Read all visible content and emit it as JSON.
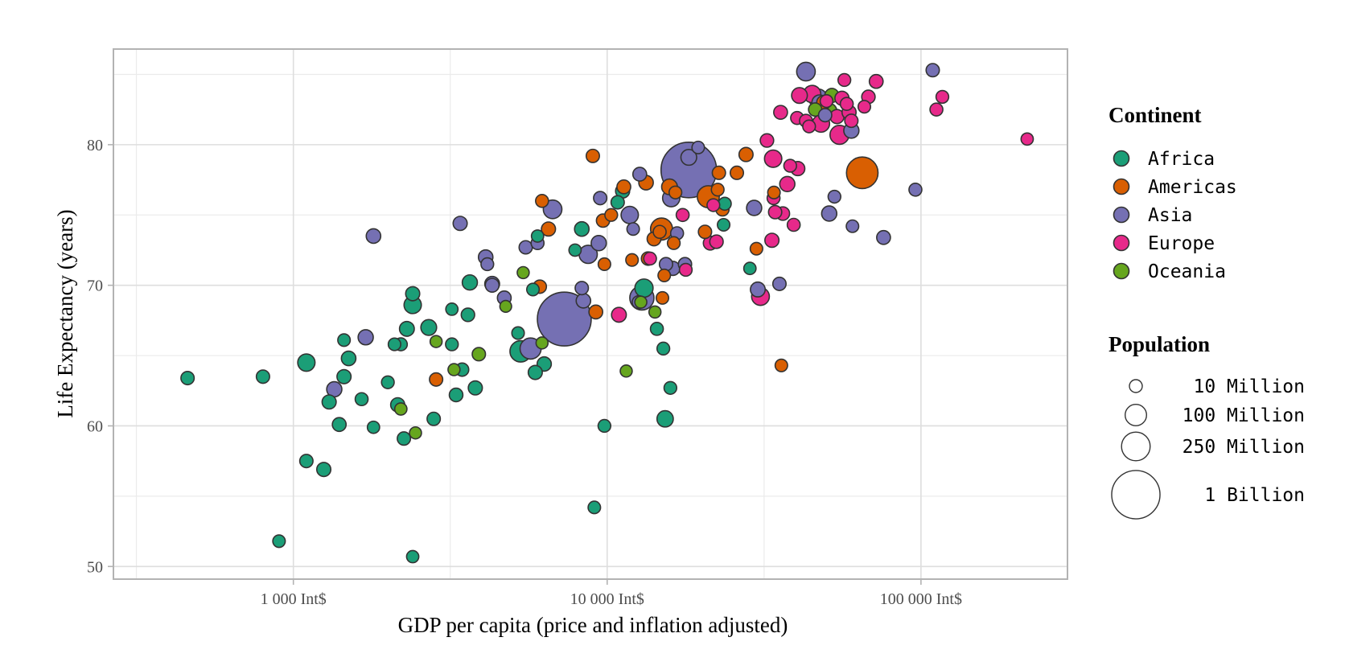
{
  "chart_data": {
    "type": "scatter",
    "title": "",
    "xlabel": "GDP per capita (price and inflation adjusted)",
    "ylabel": "Life Expectancy (years)",
    "x_scale": "log",
    "xlim": [
      267,
      293000
    ],
    "ylim": [
      49.1,
      86.8
    ],
    "x_ticks": [
      {
        "value": 1000,
        "label": "1 000 Int$"
      },
      {
        "value": 10000,
        "label": "10 000 Int$"
      },
      {
        "value": 100000,
        "label": "100 000 Int$"
      }
    ],
    "x_minor_ticks": [
      316,
      3162,
      31623
    ],
    "y_ticks": [
      {
        "value": 50,
        "label": "50"
      },
      {
        "value": 60,
        "label": "60"
      },
      {
        "value": 70,
        "label": "70"
      },
      {
        "value": 80,
        "label": "80"
      }
    ],
    "y_minor_ticks": [
      55,
      65,
      75,
      85
    ],
    "grid": true,
    "legend": {
      "position": "right",
      "color_title": "Continent",
      "size_title": "Population",
      "continents": [
        {
          "name": "Africa",
          "color": "#1b9e77"
        },
        {
          "name": "Americas",
          "color": "#d95f02"
        },
        {
          "name": "Asia",
          "color": "#7570b3"
        },
        {
          "name": "Europe",
          "color": "#e7298a"
        },
        {
          "name": "Oceania",
          "color": "#66a61e"
        }
      ],
      "sizes": [
        {
          "value_millions": 10,
          "label": "10 Million"
        },
        {
          "value_millions": 100,
          "label": "100 Million"
        },
        {
          "value_millions": 250,
          "label": "250 Million"
        },
        {
          "value_millions": 1000,
          "label": "1 Billion"
        }
      ]
    },
    "series_fields": [
      "gdp_per_capita",
      "life_expectancy",
      "population_millions",
      "continent"
    ],
    "points": [
      [
        460,
        63.4,
        12,
        "Africa"
      ],
      [
        800,
        63.5,
        12,
        "Africa"
      ],
      [
        900,
        51.8,
        8,
        "Africa"
      ],
      [
        1100,
        64.5,
        45,
        "Africa"
      ],
      [
        1100,
        57.5,
        12,
        "Africa"
      ],
      [
        1250,
        56.9,
        17,
        "Africa"
      ],
      [
        1300,
        61.7,
        17,
        "Africa"
      ],
      [
        1400,
        60.1,
        15,
        "Africa"
      ],
      [
        1450,
        66.1,
        8,
        "Africa"
      ],
      [
        1450,
        63.5,
        17,
        "Africa"
      ],
      [
        1500,
        64.8,
        20,
        "Africa"
      ],
      [
        1350,
        62.6,
        25,
        "Asia"
      ],
      [
        1700,
        66.3,
        25,
        "Asia"
      ],
      [
        1650,
        61.9,
        10,
        "Africa"
      ],
      [
        1800,
        59.9,
        7,
        "Africa"
      ],
      [
        1800,
        73.5,
        20,
        "Asia"
      ],
      [
        2000,
        63.1,
        9,
        "Africa"
      ],
      [
        2100,
        65.8,
        8,
        "Africa"
      ],
      [
        2150,
        61.5,
        17,
        "Africa"
      ],
      [
        2200,
        61.2,
        7,
        "Oceania"
      ],
      [
        2200,
        65.8,
        10,
        "Africa"
      ],
      [
        2250,
        59.1,
        12,
        "Africa"
      ],
      [
        2300,
        66.9,
        22,
        "Africa"
      ],
      [
        2400,
        68.6,
        45,
        "Africa"
      ],
      [
        2400,
        69.4,
        17,
        "Africa"
      ],
      [
        2400,
        50.7,
        7,
        "Africa"
      ],
      [
        2450,
        59.5,
        6,
        "Oceania"
      ],
      [
        2700,
        67.0,
        30,
        "Africa"
      ],
      [
        2800,
        60.5,
        12,
        "Africa"
      ],
      [
        2850,
        66.0,
        6,
        "Oceania"
      ],
      [
        2850,
        63.3,
        12,
        "Americas"
      ],
      [
        3200,
        65.8,
        9,
        "Africa"
      ],
      [
        3200,
        68.3,
        7,
        "Africa"
      ],
      [
        3250,
        64.0,
        6,
        "Oceania"
      ],
      [
        3300,
        62.2,
        14,
        "Africa"
      ],
      [
        3400,
        74.4,
        17,
        "Asia"
      ],
      [
        3450,
        64.0,
        12,
        "Africa"
      ],
      [
        3600,
        67.9,
        13,
        "Africa"
      ],
      [
        3650,
        70.2,
        25,
        "Africa"
      ],
      [
        3800,
        62.7,
        17,
        "Africa"
      ],
      [
        3900,
        65.1,
        12,
        "Oceania"
      ],
      [
        4100,
        72.0,
        20,
        "Asia"
      ],
      [
        4150,
        71.5,
        9,
        "Asia"
      ],
      [
        4300,
        70.1,
        22,
        "Asia"
      ],
      [
        4300,
        70.0,
        15,
        "Asia"
      ],
      [
        4700,
        69.1,
        15,
        "Asia"
      ],
      [
        4750,
        68.5,
        5,
        "Oceania"
      ],
      [
        5200,
        66.6,
        8,
        "Africa"
      ],
      [
        5300,
        65.3,
        100,
        "Africa"
      ],
      [
        5400,
        70.9,
        6,
        "Oceania"
      ],
      [
        5500,
        72.7,
        12,
        "Asia"
      ],
      [
        5700,
        65.5,
        95,
        "Asia"
      ],
      [
        5800,
        69.7,
        8,
        "Africa"
      ],
      [
        5900,
        63.8,
        17,
        "Africa"
      ],
      [
        6000,
        73.0,
        10,
        "Asia"
      ],
      [
        6000,
        73.5,
        7,
        "Africa"
      ],
      [
        6100,
        69.9,
        12,
        "Americas"
      ],
      [
        6200,
        76.0,
        10,
        "Americas"
      ],
      [
        6200,
        65.9,
        6,
        "Oceania"
      ],
      [
        6300,
        64.4,
        18,
        "Africa"
      ],
      [
        6500,
        74.0,
        17,
        "Americas"
      ],
      [
        6700,
        75.4,
        60,
        "Asia"
      ],
      [
        7300,
        67.6,
        1300,
        "Asia"
      ],
      [
        7900,
        72.5,
        7,
        "Africa"
      ],
      [
        8300,
        74.0,
        20,
        "Africa"
      ],
      [
        8300,
        69.8,
        12,
        "Asia"
      ],
      [
        8400,
        68.9,
        20,
        "Asia"
      ],
      [
        8700,
        72.2,
        55,
        "Asia"
      ],
      [
        9000,
        79.2,
        12,
        "Americas"
      ],
      [
        9100,
        54.2,
        8,
        "Africa"
      ],
      [
        9200,
        68.1,
        15,
        "Americas"
      ],
      [
        9400,
        73.0,
        25,
        "Asia"
      ],
      [
        9500,
        76.2,
        12,
        "Asia"
      ],
      [
        9700,
        74.6,
        12,
        "Americas"
      ],
      [
        9800,
        71.5,
        8,
        "Americas"
      ],
      [
        9800,
        60.0,
        9,
        "Africa"
      ],
      [
        10300,
        75.0,
        9,
        "Americas"
      ],
      [
        10800,
        75.9,
        12,
        "Africa"
      ],
      [
        10900,
        67.9,
        22,
        "Europe"
      ],
      [
        11200,
        76.7,
        17,
        "Africa"
      ],
      [
        11300,
        77.0,
        15,
        "Americas"
      ],
      [
        11500,
        63.9,
        6,
        "Oceania"
      ],
      [
        11800,
        75.0,
        45,
        "Asia"
      ],
      [
        12000,
        71.8,
        8,
        "Americas"
      ],
      [
        12100,
        74.0,
        8,
        "Asia"
      ],
      [
        12600,
        68.8,
        10,
        "Asia"
      ],
      [
        12700,
        77.9,
        15,
        "Asia"
      ],
      [
        12800,
        68.8,
        6,
        "Oceania"
      ],
      [
        12900,
        69.1,
        150,
        "Asia"
      ],
      [
        13100,
        69.8,
        55,
        "Africa"
      ],
      [
        13300,
        77.3,
        20,
        "Americas"
      ],
      [
        13500,
        71.9,
        13,
        "Americas"
      ],
      [
        13700,
        71.9,
        9,
        "Europe"
      ],
      [
        14100,
        73.3,
        15,
        "Americas"
      ],
      [
        14200,
        68.1,
        6,
        "Oceania"
      ],
      [
        14400,
        66.9,
        10,
        "Africa"
      ],
      [
        14700,
        73.8,
        10,
        "Americas"
      ],
      [
        14900,
        74.0,
        110,
        "Americas"
      ],
      [
        15000,
        69.1,
        8,
        "Americas"
      ],
      [
        15100,
        65.5,
        9,
        "Africa"
      ],
      [
        15200,
        70.7,
        8,
        "Americas"
      ],
      [
        15300,
        60.5,
        35,
        "Africa"
      ],
      [
        15400,
        71.5,
        12,
        "Asia"
      ],
      [
        15800,
        77.0,
        30,
        "Americas"
      ],
      [
        15900,
        62.7,
        9,
        "Africa"
      ],
      [
        16000,
        76.2,
        45,
        "Asia"
      ],
      [
        16200,
        71.2,
        17,
        "Asia"
      ],
      [
        16300,
        73.0,
        9,
        "Americas"
      ],
      [
        16500,
        76.6,
        9,
        "Americas"
      ],
      [
        16700,
        73.7,
        10,
        "Asia"
      ],
      [
        17400,
        75.0,
        10,
        "Europe"
      ],
      [
        17700,
        71.5,
        12,
        "Asia"
      ],
      [
        17800,
        71.1,
        9,
        "Europe"
      ],
      [
        18200,
        78.2,
        1400,
        "Asia"
      ],
      [
        18200,
        79.1,
        30,
        "Asia"
      ],
      [
        19500,
        79.8,
        8,
        "Asia"
      ],
      [
        20500,
        73.8,
        12,
        "Americas"
      ],
      [
        21000,
        76.3,
        110,
        "Americas"
      ],
      [
        21300,
        73.0,
        15,
        "Europe"
      ],
      [
        21800,
        75.7,
        9,
        "Europe"
      ],
      [
        22300,
        73.1,
        13,
        "Europe"
      ],
      [
        22500,
        76.8,
        9,
        "Americas"
      ],
      [
        22700,
        78.0,
        12,
        "Americas"
      ],
      [
        23300,
        75.4,
        12,
        "Americas"
      ],
      [
        23500,
        74.3,
        8,
        "Africa"
      ],
      [
        23700,
        75.8,
        10,
        "Africa"
      ],
      [
        25900,
        78.0,
        12,
        "Americas"
      ],
      [
        27700,
        79.3,
        17,
        "Americas"
      ],
      [
        28500,
        71.2,
        7,
        "Africa"
      ],
      [
        29400,
        75.5,
        25,
        "Asia"
      ],
      [
        29900,
        72.6,
        8,
        "Americas"
      ],
      [
        30200,
        69.7,
        22,
        "Asia"
      ],
      [
        30800,
        69.2,
        50,
        "Europe"
      ],
      [
        32300,
        80.3,
        13,
        "Europe"
      ],
      [
        33500,
        73.2,
        17,
        "Europe"
      ],
      [
        33800,
        79.0,
        45,
        "Europe"
      ],
      [
        33900,
        76.2,
        10,
        "Europe"
      ],
      [
        34000,
        76.6,
        8,
        "Americas"
      ],
      [
        34300,
        75.2,
        12,
        "Europe"
      ],
      [
        35400,
        70.1,
        12,
        "Asia"
      ],
      [
        35700,
        82.3,
        15,
        "Europe"
      ],
      [
        35900,
        64.3,
        8,
        "Americas"
      ],
      [
        36300,
        75.1,
        13,
        "Europe"
      ],
      [
        37500,
        77.2,
        25,
        "Europe"
      ],
      [
        38300,
        78.5,
        9,
        "Europe"
      ],
      [
        39300,
        74.3,
        10,
        "Europe"
      ],
      [
        40300,
        81.9,
        10,
        "Europe"
      ],
      [
        40500,
        78.3,
        17,
        "Europe"
      ],
      [
        41000,
        83.5,
        30,
        "Europe"
      ],
      [
        43000,
        81.7,
        10,
        "Europe"
      ],
      [
        43000,
        85.2,
        60,
        "Asia"
      ],
      [
        44000,
        81.3,
        9,
        "Europe"
      ],
      [
        45000,
        83.6,
        45,
        "Europe"
      ],
      [
        46000,
        82.5,
        12,
        "Oceania"
      ],
      [
        47000,
        83.3,
        60,
        "Asia"
      ],
      [
        47500,
        83.0,
        25,
        "Asia"
      ],
      [
        48000,
        81.5,
        45,
        "Europe"
      ],
      [
        48500,
        82.8,
        30,
        "Europe"
      ],
      [
        49000,
        83.0,
        17,
        "Americas"
      ],
      [
        49500,
        82.1,
        12,
        "Asia"
      ],
      [
        50000,
        83.1,
        9,
        "Europe"
      ],
      [
        51000,
        75.1,
        25,
        "Asia"
      ],
      [
        51000,
        82.4,
        25,
        "Oceania"
      ],
      [
        52000,
        83.5,
        17,
        "Oceania"
      ],
      [
        53000,
        76.3,
        9,
        "Asia"
      ],
      [
        54000,
        82.0,
        17,
        "Europe"
      ],
      [
        55000,
        80.7,
        65,
        "Europe"
      ],
      [
        56000,
        83.3,
        17,
        "Europe"
      ],
      [
        57000,
        84.6,
        9,
        "Europe"
      ],
      [
        58000,
        82.9,
        10,
        "Europe"
      ],
      [
        59000,
        82.3,
        17,
        "Europe"
      ],
      [
        60000,
        81.7,
        12,
        "Europe"
      ],
      [
        60000,
        81.0,
        25,
        "Asia"
      ],
      [
        60500,
        74.2,
        8,
        "Asia"
      ],
      [
        65000,
        78.0,
        330,
        "Americas"
      ],
      [
        66000,
        82.7,
        8,
        "Europe"
      ],
      [
        68000,
        83.4,
        13,
        "Europe"
      ],
      [
        72000,
        84.5,
        15,
        "Europe"
      ],
      [
        76000,
        73.4,
        15,
        "Asia"
      ],
      [
        96000,
        76.8,
        10,
        "Asia"
      ],
      [
        109000,
        85.3,
        12,
        "Asia"
      ],
      [
        112000,
        82.5,
        10,
        "Europe"
      ],
      [
        117000,
        83.4,
        9,
        "Europe"
      ],
      [
        218000,
        80.4,
        7,
        "Europe"
      ]
    ]
  }
}
